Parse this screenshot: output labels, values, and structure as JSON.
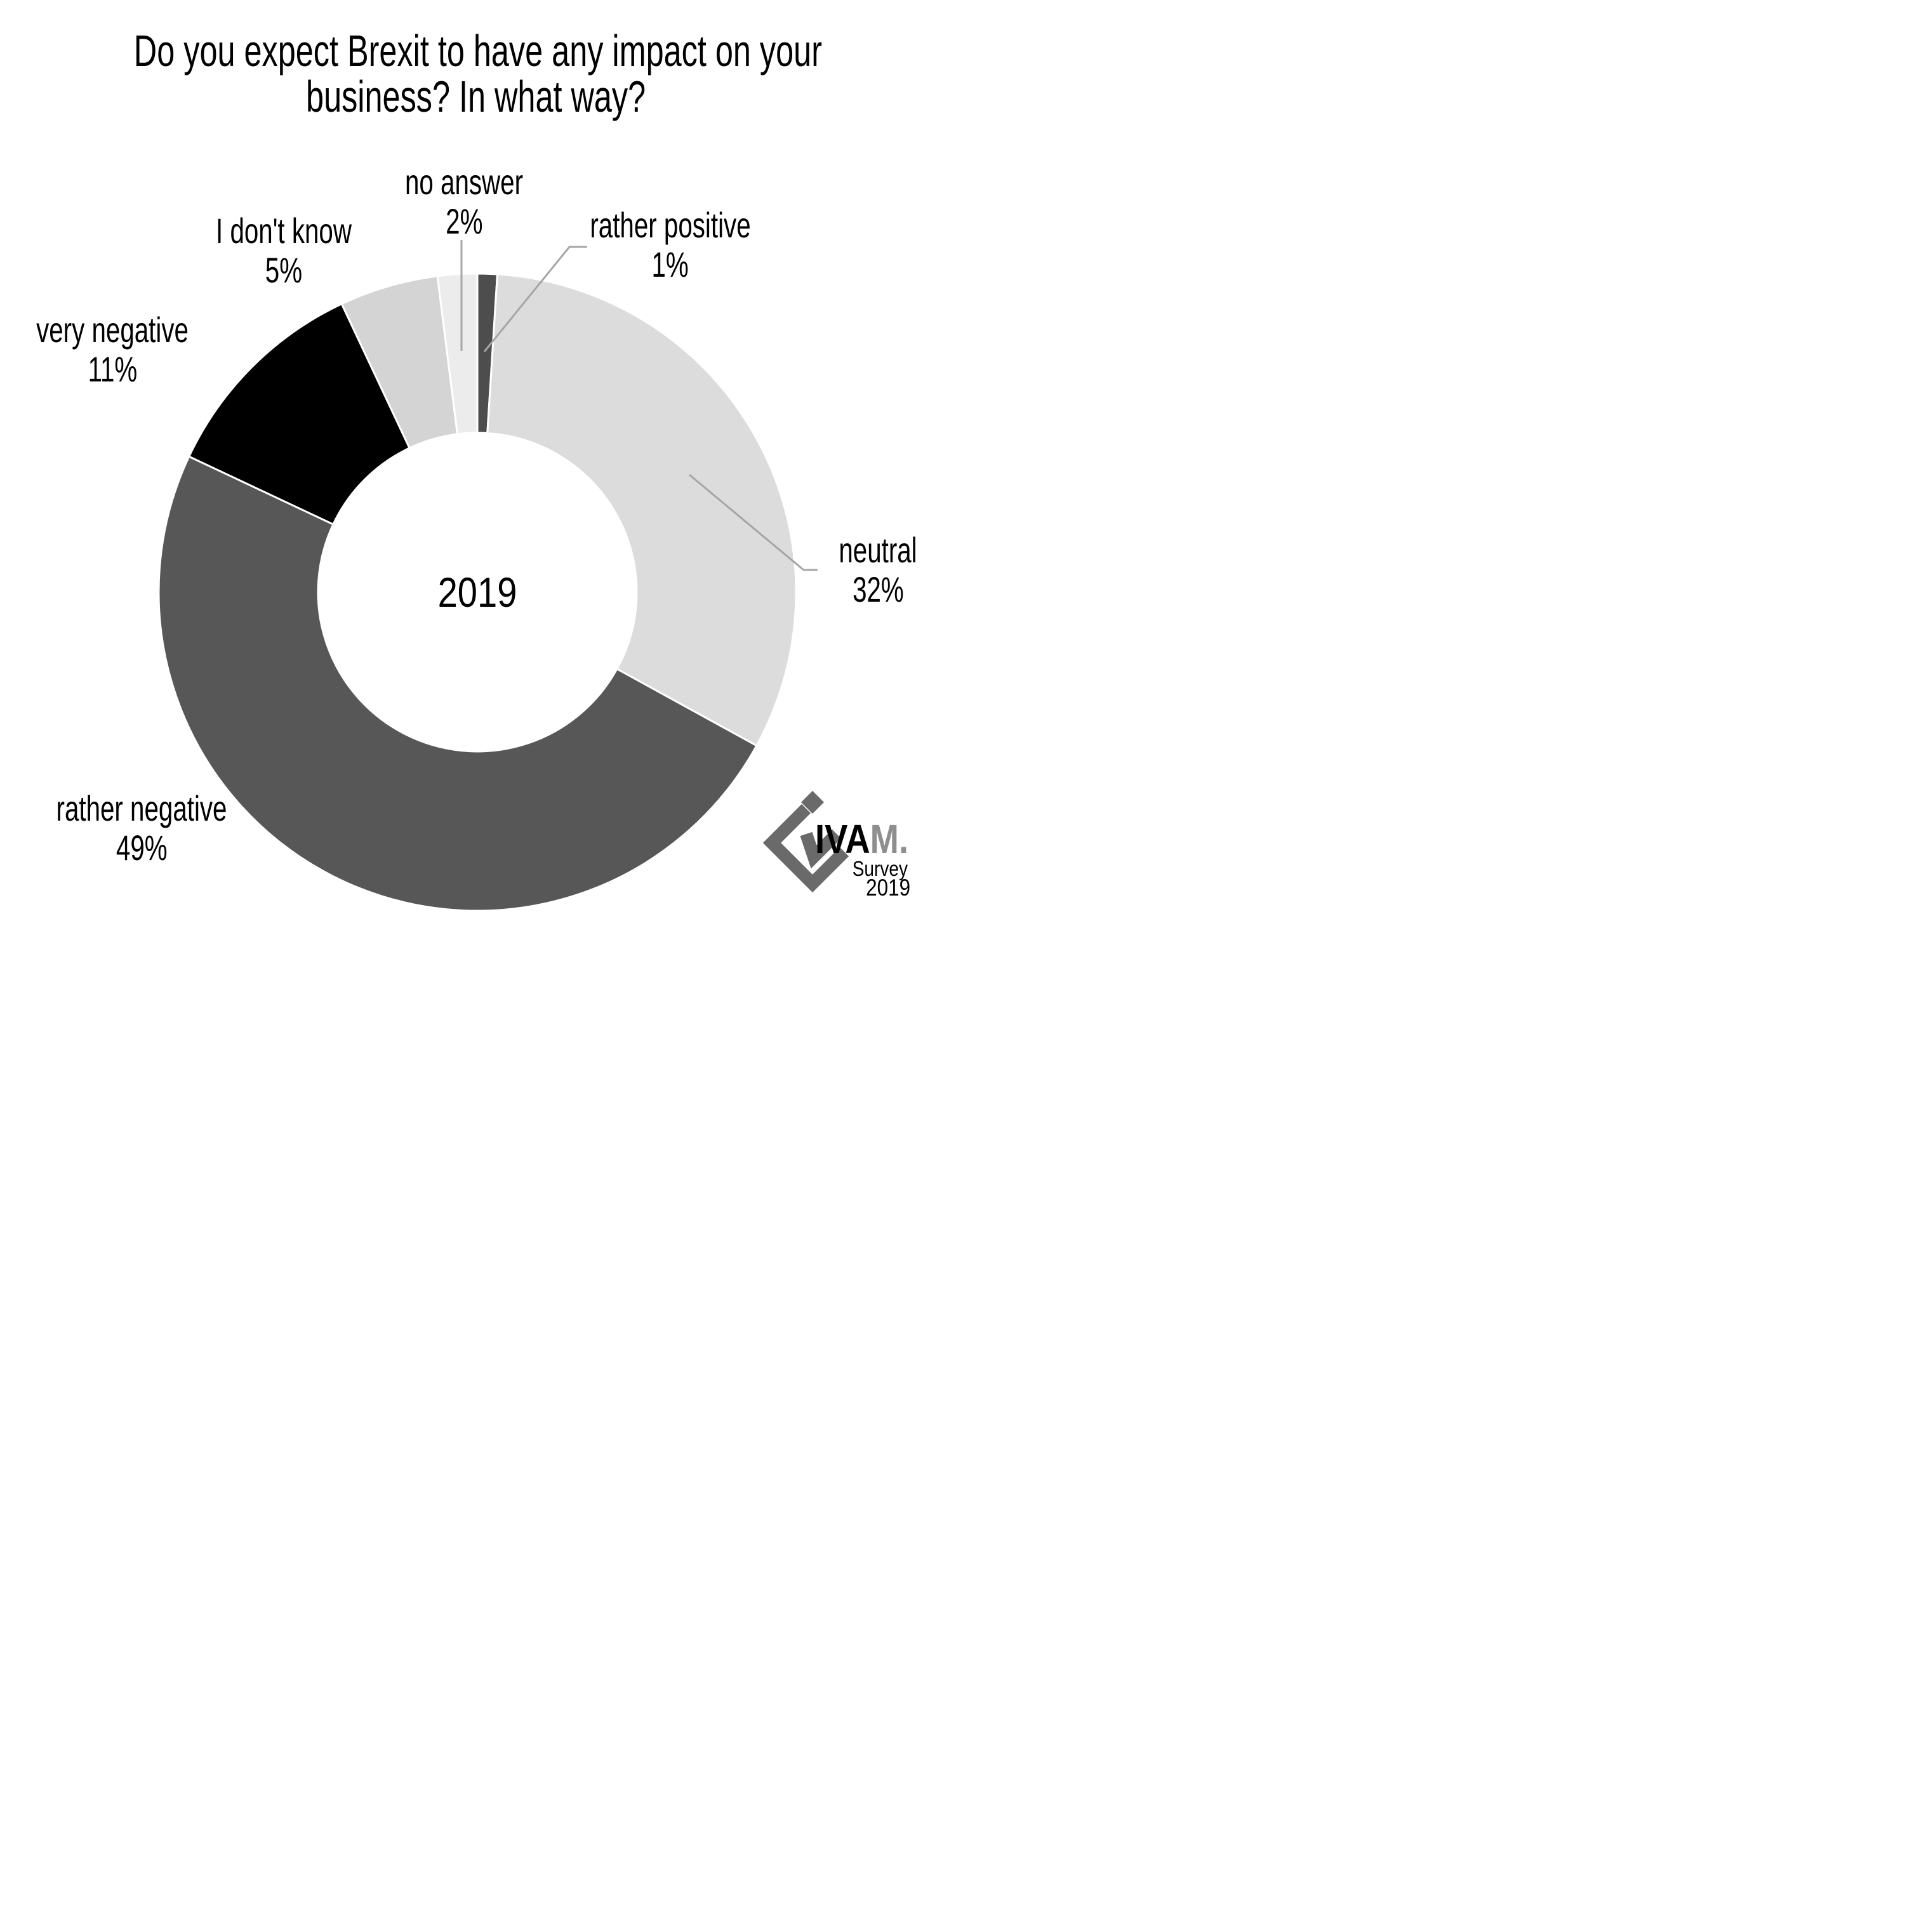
{
  "title": {
    "line1": "Do you expect Brexit to have any impact on your",
    "line2": "business? In what way?"
  },
  "center_label": "2019",
  "chart_data": {
    "type": "pie",
    "subtype": "donut",
    "title": "Do you expect Brexit to have any impact on your business? In what way?",
    "center_label": "2019",
    "hole_ratio": 0.5,
    "start_angle_deg": 0,
    "direction": "clockwise",
    "legend_position": "none",
    "labels_outside": true,
    "slice_border_color": "#ffffff",
    "leader_line_color": "#a6a6a6",
    "segments": [
      {
        "label": "rather positive",
        "value_pct": 1,
        "color": "#4d4d4d"
      },
      {
        "label": "neutral",
        "value_pct": 32,
        "color": "#dcdcdc"
      },
      {
        "label": "rather negative",
        "value_pct": 49,
        "color": "#575757"
      },
      {
        "label": "very negative",
        "value_pct": 11,
        "color": "#000000"
      },
      {
        "label": "I don't know",
        "value_pct": 5,
        "color": "#d4d4d4"
      },
      {
        "label": "no answer",
        "value_pct": 2,
        "color": "#ececec"
      }
    ]
  },
  "labels": {
    "rather_positive": {
      "line1": "rather positive",
      "line2": "1%"
    },
    "neutral": {
      "line1": "neutral",
      "line2": "32%"
    },
    "rather_negative": {
      "line1": "rather negative",
      "line2": "49%"
    },
    "very_negative": {
      "line1": "very negative",
      "line2": "11%"
    },
    "i_dont_know": {
      "line1": "I don't know",
      "line2": "5%"
    },
    "no_answer": {
      "line1": "no answer",
      "line2": "2%"
    }
  },
  "logo": {
    "brand_dark": "IVA",
    "brand_light": "M.",
    "subtitle": "Survey",
    "year": "2019",
    "mark_color": "#6a6a6a",
    "brand_dark_color": "#333333",
    "brand_light_color": "#8e8e8e"
  }
}
